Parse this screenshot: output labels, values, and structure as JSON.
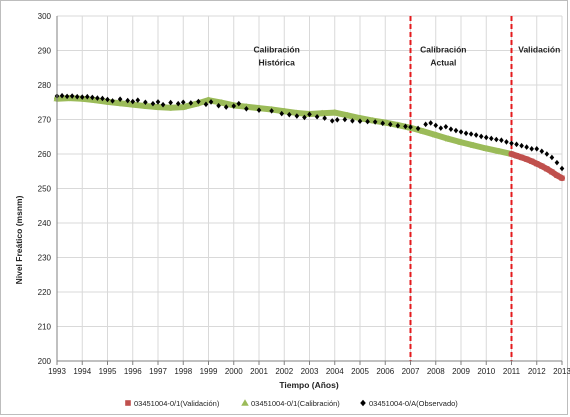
{
  "chart_data": {
    "type": "scatter",
    "xlabel": "Tiempo (Años)",
    "ylabel": "Nivel Freático (msnm)",
    "xlim": [
      1993,
      2013
    ],
    "ylim": [
      200,
      300
    ],
    "xticks": [
      "1993",
      "1994",
      "1995",
      "1996",
      "1997",
      "1998",
      "1999",
      "2000",
      "2001",
      "2002",
      "2003",
      "2004",
      "2005",
      "2006",
      "2007",
      "2008",
      "2009",
      "2010",
      "2011",
      "2012",
      "2013"
    ],
    "yticks": [
      "200",
      "210",
      "220",
      "230",
      "240",
      "250",
      "260",
      "270",
      "280",
      "290",
      "300"
    ],
    "grid": true,
    "legend_position": "bottom",
    "vlines": [
      {
        "x": 2007,
        "color": "#e41a1c",
        "style": "dashed"
      },
      {
        "x": 2011,
        "color": "#e41a1c",
        "style": "dashed"
      }
    ],
    "annotations": [
      {
        "lines": [
          "Calibración",
          "Histórica"
        ],
        "x": 2001.7,
        "y": 283
      },
      {
        "lines": [
          "Calibración",
          "Actual"
        ],
        "x": 2008.3,
        "y": 283
      },
      {
        "lines": [
          "Validación"
        ],
        "x": 2012.1,
        "y": 283
      }
    ],
    "series": [
      {
        "name": "03451004-0/1(Validación)",
        "color": "#c0504d",
        "marker": "square",
        "x": [
          2011.0,
          2011.2,
          2011.4,
          2011.6,
          2011.8,
          2012.0,
          2012.2,
          2012.4,
          2012.6,
          2012.8,
          2013.0
        ],
        "y": [
          260.0,
          259.5,
          259.0,
          258.5,
          257.9,
          257.2,
          256.5,
          255.7,
          254.8,
          253.8,
          253.0
        ]
      },
      {
        "name": "03451004-0/1(Calibración)",
        "color": "#9bbb59",
        "marker": "triangle",
        "x": [
          1993.0,
          1993.5,
          1994.0,
          1994.5,
          1995.0,
          1995.5,
          1996.0,
          1996.5,
          1997.0,
          1997.5,
          1998.0,
          1998.5,
          1999.0,
          1999.5,
          2000.0,
          2000.5,
          2001.0,
          2001.5,
          2002.0,
          2002.5,
          2003.0,
          2003.5,
          2004.0,
          2004.5,
          2005.0,
          2005.5,
          2006.0,
          2006.5,
          2007.0,
          2007.5,
          2008.0,
          2008.5,
          2009.0,
          2009.5,
          2010.0,
          2010.5,
          2011.0
        ],
        "y": [
          276.0,
          276.2,
          276.0,
          275.6,
          275.1,
          274.7,
          274.3,
          273.9,
          273.6,
          273.4,
          273.6,
          274.5,
          275.6,
          274.9,
          274.1,
          273.7,
          273.3,
          272.9,
          272.4,
          271.9,
          271.6,
          271.8,
          272.0,
          271.2,
          270.4,
          269.7,
          269.1,
          268.4,
          267.6,
          266.6,
          265.5,
          264.4,
          263.4,
          262.5,
          261.6,
          260.8,
          260.0
        ]
      },
      {
        "name": "03451004-0/A(Observado)",
        "color": "#000000",
        "marker": "diamond",
        "x": [
          1993.0,
          1993.2,
          1993.4,
          1993.6,
          1993.8,
          1994.0,
          1994.2,
          1994.4,
          1994.6,
          1994.8,
          1995.0,
          1995.2,
          1995.5,
          1995.8,
          1996.0,
          1996.2,
          1996.5,
          1996.8,
          1997.0,
          1997.2,
          1997.5,
          1997.8,
          1998.0,
          1998.3,
          1998.6,
          1998.9,
          1999.1,
          1999.4,
          1999.7,
          2000.0,
          2000.2,
          2000.5,
          2001.0,
          2001.5,
          2001.9,
          2002.2,
          2002.5,
          2002.8,
          2003.0,
          2003.3,
          2003.6,
          2003.9,
          2004.1,
          2004.4,
          2004.7,
          2005.0,
          2005.3,
          2005.6,
          2005.9,
          2006.2,
          2006.5,
          2006.8,
          2007.0,
          2007.3,
          2007.6,
          2007.8,
          2008.0,
          2008.2,
          2008.4,
          2008.6,
          2008.8,
          2009.0,
          2009.2,
          2009.4,
          2009.6,
          2009.8,
          2010.0,
          2010.2,
          2010.4,
          2010.6,
          2010.8,
          2011.0,
          2011.2,
          2011.4,
          2011.6,
          2011.8,
          2012.0,
          2012.2,
          2012.4,
          2012.6,
          2012.8,
          2013.0
        ],
        "y": [
          276.8,
          276.9,
          276.7,
          276.8,
          276.6,
          276.5,
          276.6,
          276.4,
          276.2,
          276.1,
          275.8,
          275.4,
          275.9,
          275.5,
          275.2,
          275.6,
          275.0,
          274.6,
          275.1,
          274.3,
          274.9,
          274.6,
          275.0,
          274.8,
          275.2,
          274.4,
          275.1,
          274.0,
          273.6,
          273.9,
          274.6,
          273.1,
          272.7,
          272.5,
          271.7,
          271.4,
          271.0,
          270.6,
          271.5,
          270.8,
          270.4,
          269.6,
          269.9,
          270.0,
          269.6,
          269.5,
          269.4,
          269.3,
          268.9,
          268.6,
          268.2,
          268.0,
          267.8,
          267.4,
          268.6,
          269.0,
          268.3,
          267.5,
          267.9,
          267.2,
          266.8,
          266.4,
          266.0,
          265.8,
          265.5,
          265.1,
          264.8,
          264.5,
          264.2,
          264.0,
          263.5,
          263.1,
          262.8,
          262.4,
          262.0,
          261.5,
          261.5,
          260.8,
          260.0,
          259.0,
          257.5,
          255.8
        ]
      }
    ]
  },
  "colors": {
    "grid": "#d9d9d9",
    "axis": "#808080",
    "vline": "#e41a1c",
    "background": "#ffffff"
  }
}
